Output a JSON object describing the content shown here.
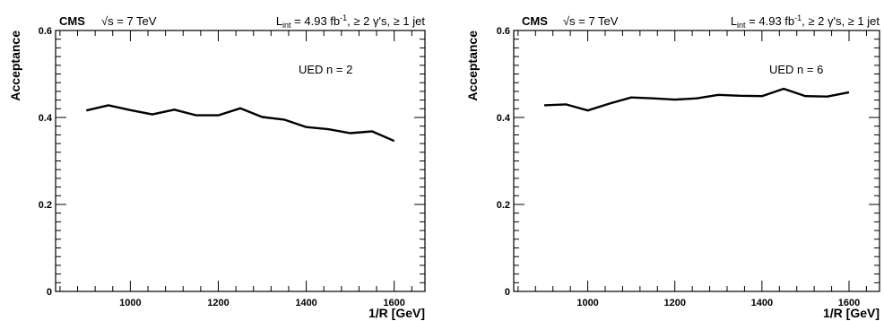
{
  "chart_data": [
    {
      "type": "line",
      "header": {
        "experiment": "CMS",
        "energy": "√s = 7 TeV",
        "lumi_pre": "L",
        "lumi_sub": "int",
        "lumi_mid": " = 4.93 fb",
        "lumi_sup": "-1",
        "lumi_post": ",  ≥ 2 γ's,  ≥ 1 jet"
      },
      "annotation": "UED n = 2",
      "xlabel": "1/R [GeV]",
      "ylabel": "Acceptance",
      "xlim": [
        830,
        1670
      ],
      "ylim": [
        0,
        0.6
      ],
      "x_ticks": [
        1000,
        1200,
        1400,
        1600
      ],
      "y_ticks": [
        0,
        0.2,
        0.4,
        0.6
      ],
      "y_tick_labels": [
        "0",
        "0.2",
        "0.4",
        "0.6"
      ],
      "series": [
        {
          "x": [
            900,
            950,
            1000,
            1050,
            1100,
            1150,
            1200,
            1250,
            1300,
            1350,
            1400,
            1450,
            1500,
            1550,
            1600
          ],
          "values": [
            0.416,
            0.428,
            0.417,
            0.407,
            0.418,
            0.405,
            0.405,
            0.421,
            0.401,
            0.395,
            0.378,
            0.373,
            0.364,
            0.368,
            0.346
          ]
        }
      ],
      "line_color": "#000000"
    },
    {
      "type": "line",
      "header": {
        "experiment": "CMS",
        "energy": "√s = 7 TeV",
        "lumi_pre": "L",
        "lumi_sub": "int",
        "lumi_mid": " = 4.93 fb",
        "lumi_sup": "-1",
        "lumi_post": ",  ≥ 2 γ's,  ≥ 1 jet"
      },
      "annotation": "UED n = 6",
      "xlabel": "1/R [GeV]",
      "ylabel": "Acceptance",
      "xlim": [
        830,
        1670
      ],
      "ylim": [
        0,
        0.6
      ],
      "x_ticks": [
        1000,
        1200,
        1400,
        1600
      ],
      "y_ticks": [
        0,
        0.2,
        0.4,
        0.6
      ],
      "y_tick_labels": [
        "0",
        "0.2",
        "0.4",
        "0.6"
      ],
      "series": [
        {
          "x": [
            900,
            950,
            1000,
            1050,
            1100,
            1150,
            1200,
            1250,
            1300,
            1350,
            1400,
            1450,
            1500,
            1550,
            1600
          ],
          "values": [
            0.428,
            0.43,
            0.416,
            0.432,
            0.446,
            0.444,
            0.441,
            0.444,
            0.452,
            0.45,
            0.449,
            0.466,
            0.449,
            0.448,
            0.458
          ]
        }
      ],
      "line_color": "#000000"
    }
  ]
}
